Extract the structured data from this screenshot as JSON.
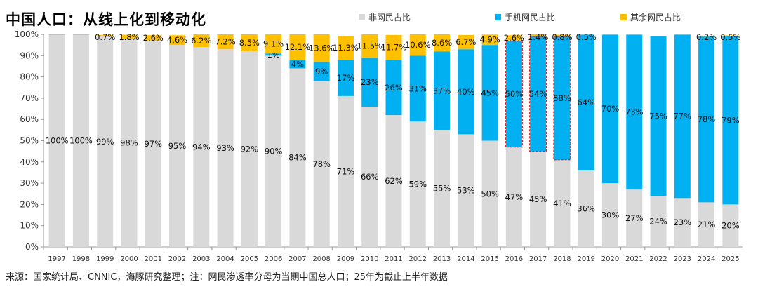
{
  "title": "中国人口：从线上化到移动化",
  "footer": "来源：国家统计局、CNNIC，海豚研究整理；注：网民渗透率分母为当期中国总人口；25年为截止上半年数据",
  "chart_data": {
    "type": "bar",
    "stacked": true,
    "categories": [
      "1997",
      "1998",
      "1999",
      "2000",
      "2001",
      "2002",
      "2003",
      "2004",
      "2005",
      "2006",
      "2007",
      "2008",
      "2009",
      "2010",
      "2011",
      "2012",
      "2013",
      "2014",
      "2015",
      "2016",
      "2017",
      "2018",
      "2019",
      "2020",
      "2021",
      "2022",
      "2023",
      "2024",
      "2025"
    ],
    "series": [
      {
        "name": "非网民占比",
        "color": "#d9d9d9",
        "values": [
          100,
          100,
          99,
          98,
          97,
          95,
          94,
          93,
          92,
          90,
          84,
          78,
          71,
          66,
          62,
          59,
          55,
          53,
          50,
          47,
          45,
          41,
          36,
          30,
          27,
          24,
          23,
          21,
          20
        ],
        "labels": [
          "100%",
          "100%",
          "99%",
          "98%",
          "97%",
          "95%",
          "94%",
          "93%",
          "92%",
          "90%",
          "84%",
          "78%",
          "71%",
          "66%",
          "62%",
          "59%",
          "55%",
          "53%",
          "50%",
          "47%",
          "45%",
          "41%",
          "36%",
          "30%",
          "27%",
          "24%",
          "23%",
          "21%",
          "20%"
        ]
      },
      {
        "name": "手机网民占比",
        "color": "#00b0f0",
        "values": [
          0,
          0,
          0,
          0,
          0,
          0,
          0,
          0,
          0,
          1,
          4,
          9,
          17,
          23,
          26,
          31,
          37,
          40,
          45,
          50,
          54,
          58,
          64,
          70,
          73,
          75,
          77,
          78,
          79
        ],
        "labels": [
          null,
          null,
          null,
          null,
          null,
          null,
          null,
          null,
          null,
          "1%",
          "4%",
          "9%",
          "17%",
          "23%",
          "26%",
          "31%",
          "37%",
          "40%",
          "45%",
          "50%",
          "54%",
          "58%",
          "64%",
          "70%",
          "73%",
          "75%",
          "77%",
          "78%",
          "79%"
        ]
      },
      {
        "name": "其余网民占比",
        "color": "#ffc000",
        "values": [
          0.3,
          0.3,
          0.7,
          1.8,
          2.6,
          4.6,
          6.2,
          7.2,
          8.5,
          9.1,
          12.1,
          13.6,
          11.3,
          11.5,
          11.7,
          10.6,
          8.6,
          6.7,
          4.9,
          2.6,
          1.4,
          0.8,
          0.5,
          0.3,
          0.3,
          0.3,
          0.3,
          0.2,
          0.5
        ],
        "labels": [
          null,
          null,
          "0.7%",
          "1.8%",
          "2.6%",
          "4.6%",
          "6.2%",
          "7.2%",
          "8.5%",
          "9.1%",
          "12.1%",
          "13.6%",
          "11.3%",
          "11.5%",
          "11.7%",
          "10.6%",
          "8.6%",
          "6.7%",
          "4.9%",
          "2.6%",
          "1.4%",
          "0.8%",
          "0.5%",
          null,
          null,
          null,
          null,
          "0.2%",
          "0.5%"
        ]
      }
    ],
    "highlighted": [
      "2016",
      "2017",
      "2018"
    ],
    "highlight_color": "#e02020",
    "ylim": [
      0,
      100
    ],
    "yticks": [
      "0%",
      "10%",
      "20%",
      "30%",
      "40%",
      "50%",
      "60%",
      "70%",
      "80%",
      "90%",
      "100%"
    ],
    "legend": "top",
    "grid": false
  }
}
